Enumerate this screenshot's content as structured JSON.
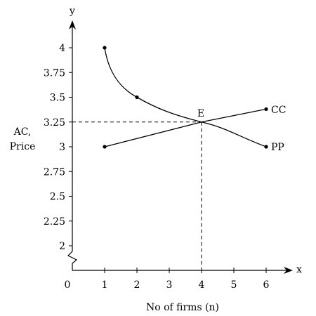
{
  "chart_data": {
    "type": "line",
    "title": "",
    "xlabel": "No of firms (n)",
    "ylabel": [
      "AC,",
      "Price"
    ],
    "x_axis_name": "x",
    "y_axis_name": "y",
    "origin_label": "0",
    "xlim": [
      0,
      7
    ],
    "ylim": [
      2,
      4.25
    ],
    "axis_break": "y-axis break below 2",
    "x_ticks": [
      1,
      2,
      3,
      4,
      5,
      6
    ],
    "x_tick_labels": [
      "1",
      "2",
      "3",
      "4",
      "5",
      "6"
    ],
    "y_ticks": [
      2,
      2.25,
      2.5,
      2.75,
      3,
      3.25,
      3.5,
      3.75,
      4
    ],
    "y_tick_labels": [
      "2",
      "2.25",
      "2.5",
      "2.75",
      "3",
      "3.25",
      "3.5",
      "3.75",
      "4"
    ],
    "grid": false,
    "series": [
      {
        "name": "PP",
        "curve": "smooth-convex",
        "x": [
          1,
          2,
          4,
          6
        ],
        "y": [
          4,
          3.5,
          3.25,
          3
        ],
        "markers_at": [
          1,
          2,
          6
        ]
      },
      {
        "name": "CC",
        "curve": "straight",
        "x": [
          1,
          4,
          6
        ],
        "y": [
          3,
          3.25,
          3.38
        ],
        "markers_at": [
          1,
          6
        ]
      }
    ],
    "equilibrium": {
      "label": "E",
      "x": 4,
      "y": 3.25
    }
  }
}
